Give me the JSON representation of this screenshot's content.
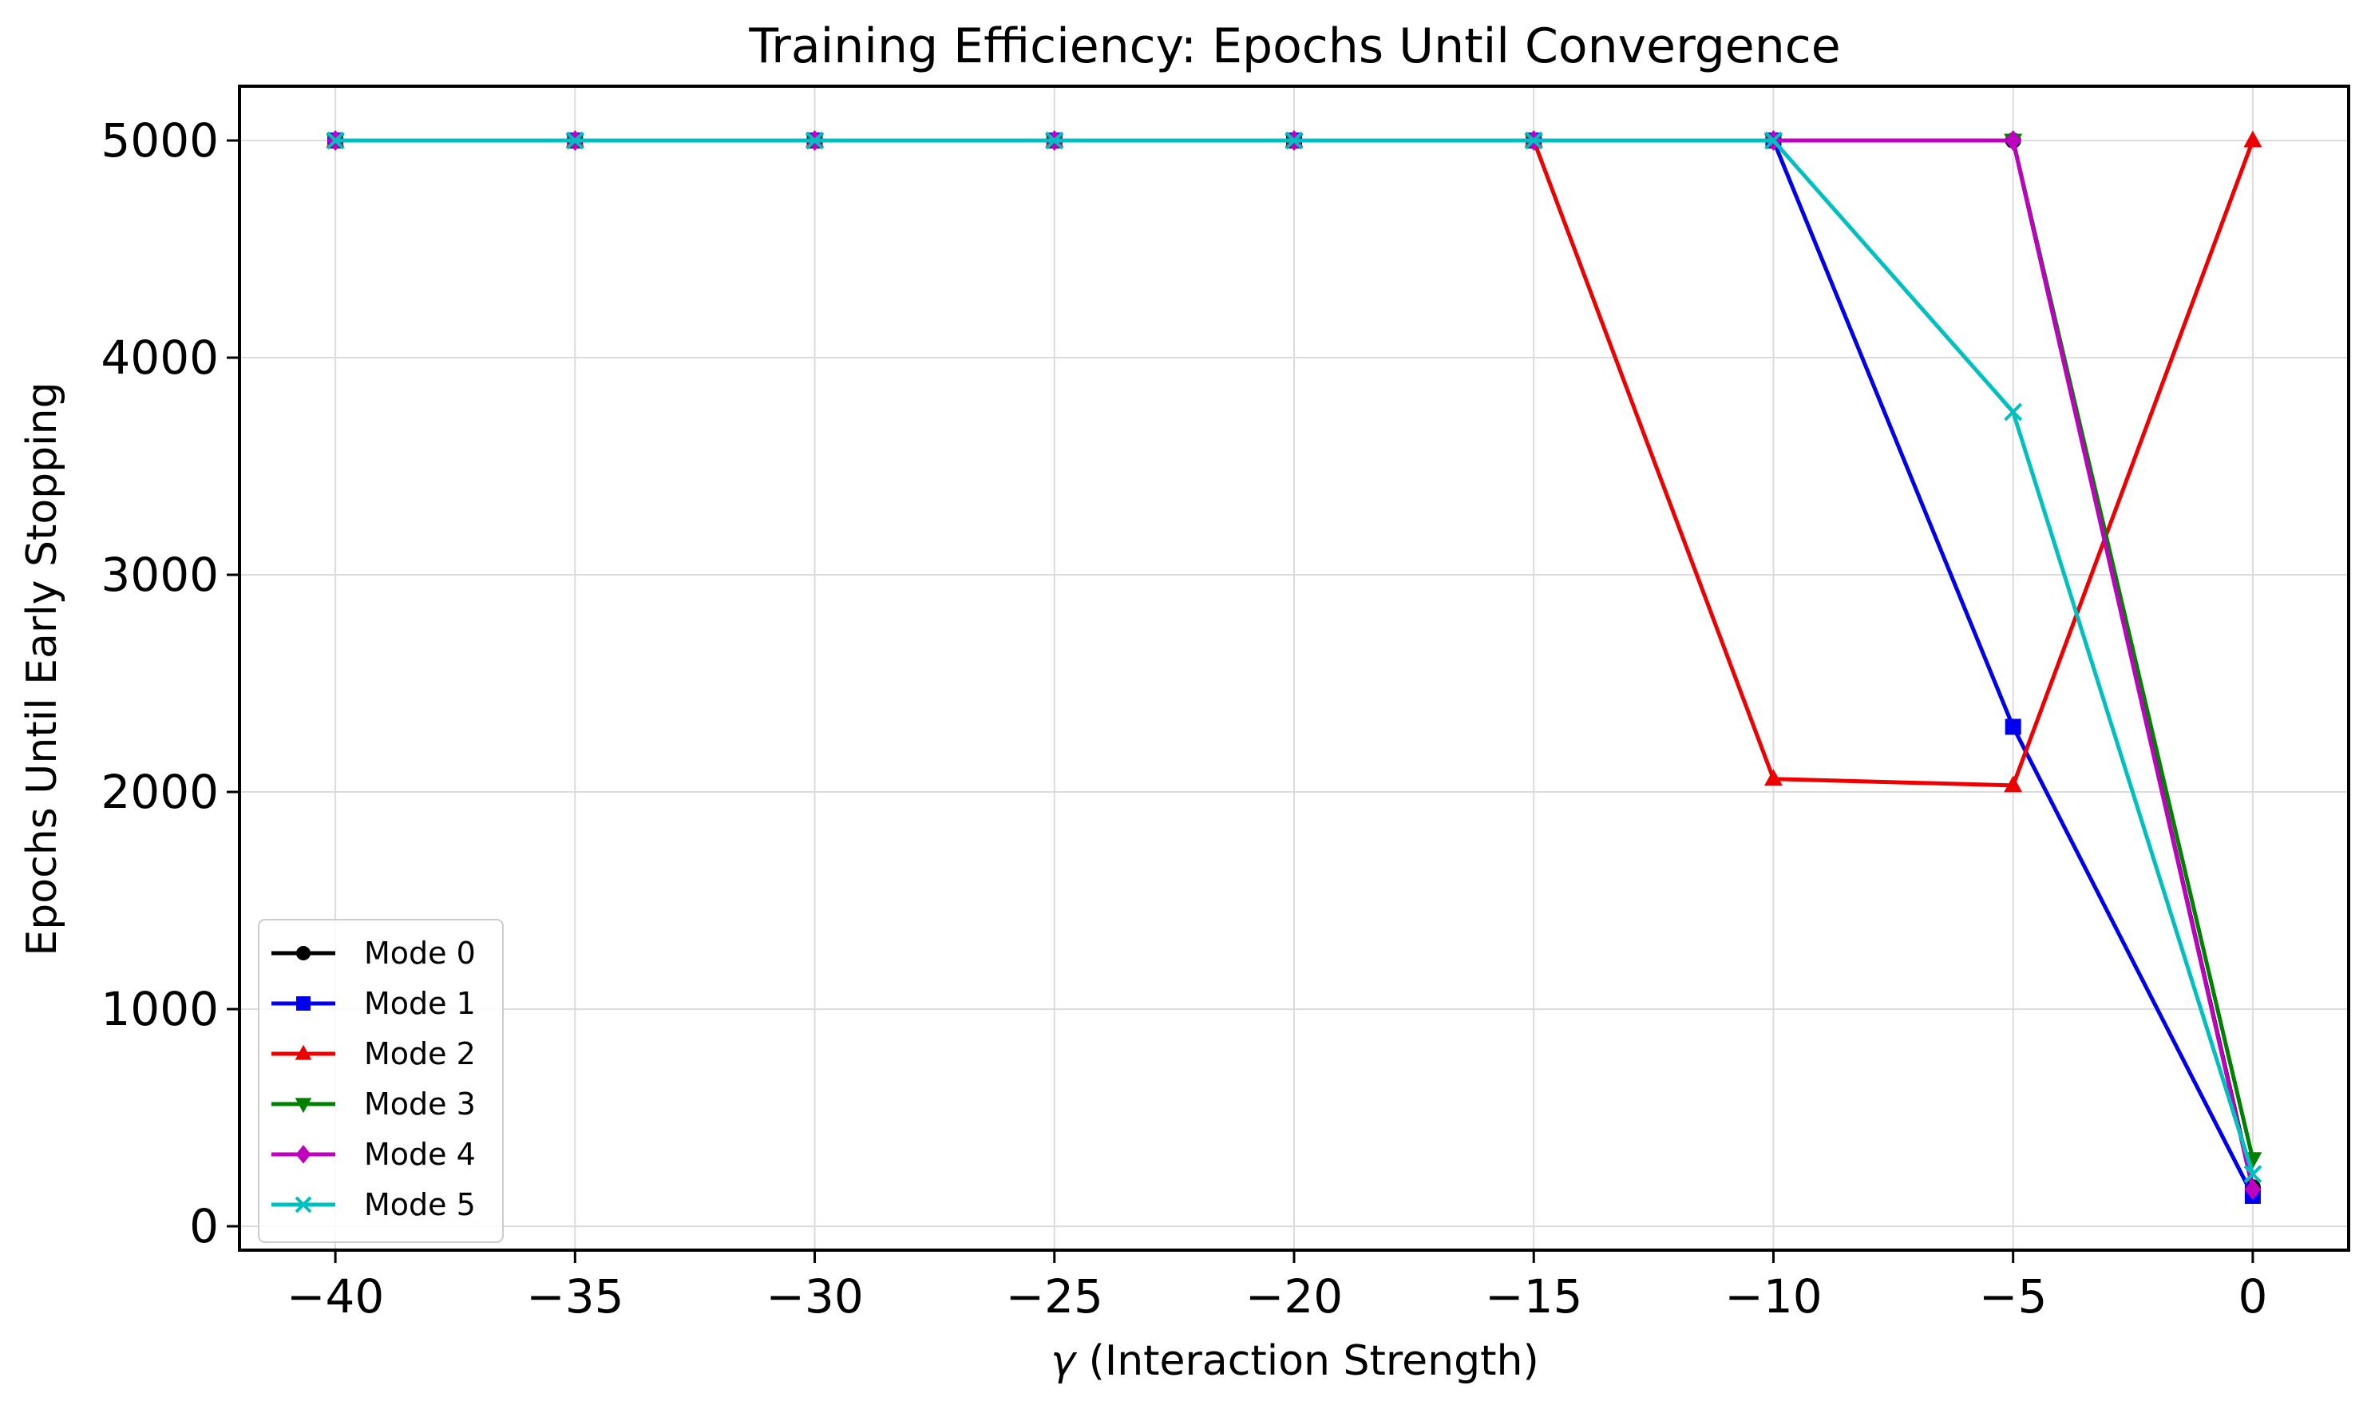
{
  "chart_data": {
    "type": "line",
    "title": "Training Efficiency: Epochs Until Convergence",
    "xlabel_symbol": "γ",
    "xlabel_rest": " (Interaction Strength)",
    "ylabel": "Epochs Until Early Stopping",
    "xlim": [
      -42,
      2
    ],
    "ylim": [
      -110,
      5250
    ],
    "x_ticks": [
      -40,
      -35,
      -30,
      -25,
      -20,
      -15,
      -10,
      -5,
      0
    ],
    "x_tick_labels": [
      "−40",
      "−35",
      "−30",
      "−25",
      "−20",
      "−15",
      "−10",
      "−5",
      "0"
    ],
    "y_ticks": [
      0,
      1000,
      2000,
      3000,
      4000,
      5000
    ],
    "y_tick_labels": [
      "0",
      "1000",
      "2000",
      "3000",
      "4000",
      "5000"
    ],
    "grid": true,
    "legend_position": "lower-left",
    "x": [
      -40,
      -35,
      -30,
      -25,
      -20,
      -15,
      -10,
      -5,
      0
    ],
    "series": [
      {
        "name": "Mode 0",
        "color": "#000000",
        "marker": "circle",
        "values": [
          5000,
          5000,
          5000,
          5000,
          5000,
          5000,
          5000,
          5000,
          180
        ]
      },
      {
        "name": "Mode 1",
        "color": "#0000ee",
        "marker": "square",
        "values": [
          5000,
          5000,
          5000,
          5000,
          5000,
          5000,
          5000,
          2300,
          140
        ]
      },
      {
        "name": "Mode 2",
        "color": "#ee0000",
        "marker": "triangle-up",
        "values": [
          5000,
          5000,
          5000,
          5000,
          5000,
          5000,
          2060,
          2030,
          5000
        ]
      },
      {
        "name": "Mode 3",
        "color": "#008000",
        "marker": "triangle-down",
        "values": [
          5000,
          5000,
          5000,
          5000,
          5000,
          5000,
          5000,
          5000,
          310
        ]
      },
      {
        "name": "Mode 4",
        "color": "#c000c0",
        "marker": "diamond",
        "values": [
          5000,
          5000,
          5000,
          5000,
          5000,
          5000,
          5000,
          5000,
          170
        ]
      },
      {
        "name": "Mode 5",
        "color": "#00bfbf",
        "marker": "x",
        "values": [
          5000,
          5000,
          5000,
          5000,
          5000,
          5000,
          5000,
          3750,
          240
        ]
      }
    ]
  }
}
